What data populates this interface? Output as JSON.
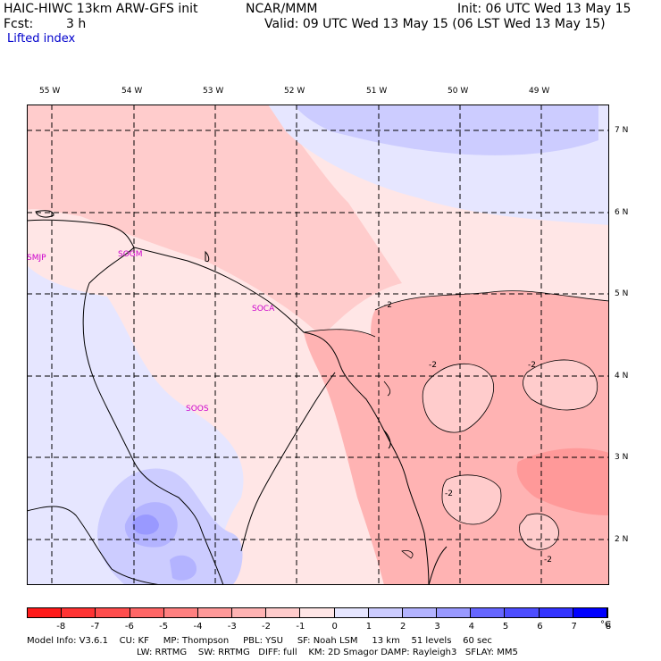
{
  "header": {
    "model": "HAIC-HIWC 13km ARW-GFS init",
    "org": "NCAR/MMM",
    "init": "Init: 06 UTC Wed 13 May 15",
    "fcst_label": "Fcst:",
    "fcst_value": "3 h",
    "valid": "Valid: 09 UTC Wed 13 May 15 (06 LST Wed 13 May 15)",
    "field": "Lifted index"
  },
  "map": {
    "lon_labels": [
      "55 W",
      "54 W",
      "53 W",
      "52 W",
      "51 W",
      "50 W",
      "49 W"
    ],
    "lat_labels": [
      "7 N",
      "6 N",
      "5 N",
      "4 N",
      "3 N",
      "2 N"
    ],
    "stations": [
      "SMJP",
      "SOGM",
      "SOCA",
      "SOOS"
    ],
    "contour_labels": [
      "-2",
      "-2",
      "-2",
      "-2",
      "-2"
    ]
  },
  "colorbar": {
    "ticks": [
      "-8",
      "-7",
      "-6",
      "-5",
      "-4",
      "-3",
      "-2",
      "-1",
      "0",
      "1",
      "2",
      "3",
      "4",
      "5",
      "6",
      "7",
      "8"
    ],
    "unit": "°C",
    "colors": [
      "#ff1a1a",
      "#ff3333",
      "#ff4d4d",
      "#ff6666",
      "#ff8080",
      "#ff9999",
      "#ffb3b3",
      "#ffcccc",
      "#ffe6e6",
      "#e6e6ff",
      "#ccccff",
      "#b3b3ff",
      "#9999ff",
      "#6666ff",
      "#4d4dff",
      "#3333ff",
      "#0000ff"
    ]
  },
  "footer": {
    "line1": "Model Info: V3.6.1    CU: KF     MP: Thompson     PBL: YSU     SF: Noah LSM     13 km    51 levels    60 sec",
    "line2": "LW: RRTMG    SW: RRTMG   DIFF: full    KM: 2D Smagor DAMP: Rayleigh3   SFLAY: MM5"
  }
}
